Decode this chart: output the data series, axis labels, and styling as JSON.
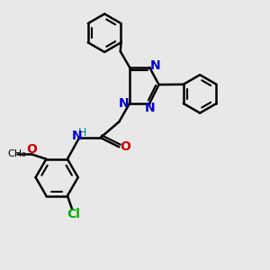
{
  "background_color": "#e8e8e8",
  "bond_color": "#000000",
  "bond_width": 1.8,
  "atom_colors": {
    "N": "#0000cc",
    "O": "#cc0000",
    "Cl": "#00aa00",
    "H": "#008888",
    "C": "#000000"
  },
  "font_size": 10,
  "font_size_small": 9
}
